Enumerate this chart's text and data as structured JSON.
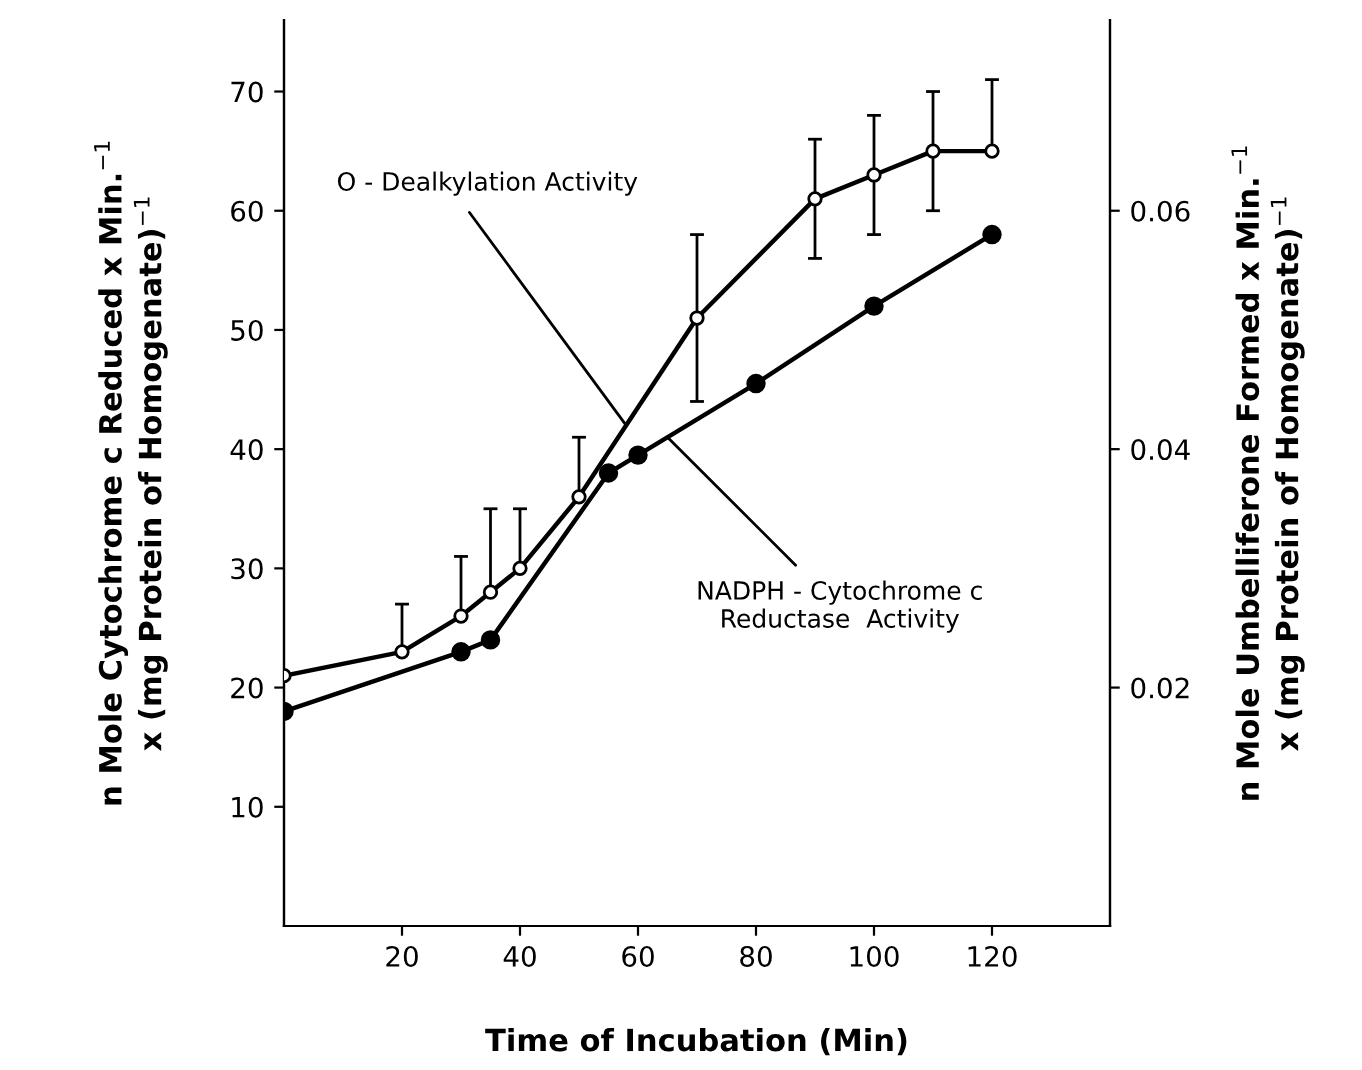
{
  "chart_data": {
    "type": "line",
    "xlabel": "Time of Incubation (Min)",
    "ylabel": "n Mole Cytochrome c Reduced x Min.$^{−1}$\nx (mg Protein of Homogenate)$^{−1}$",
    "y2label": "n Mole Umbelliferone Formed x Min.$^{−1}$\nx (mg Protein of Homogenate)$^{−1}$",
    "xlim": [
      0,
      140
    ],
    "xticks": [
      20,
      40,
      60,
      80,
      100,
      120
    ],
    "ylim": [
      0,
      76
    ],
    "yticks": [
      10,
      20,
      30,
      40,
      50,
      60,
      70
    ],
    "y2lim": [
      0,
      0.076
    ],
    "y2ticks": [
      0.02,
      0.04,
      0.06
    ],
    "grid": false,
    "marker": "circle",
    "line_style": "solid",
    "series": [
      {
        "color": "#000000",
        "axis": "y2",
        "x": [
          0,
          20,
          30,
          35,
          40,
          50,
          70,
          90,
          100,
          110,
          120
        ],
        "values": [
          0.021,
          0.023,
          0.026,
          0.028,
          0.03,
          0.036,
          0.051,
          0.061,
          0.063,
          0.065,
          0.065
        ],
        "errors": [
          null,
          [
            0.023,
            0.027
          ],
          [
            0.026,
            0.031
          ],
          [
            0.028,
            0.035
          ],
          [
            0.03,
            0.035
          ],
          [
            0.036,
            0.041
          ],
          [
            0.044,
            0.058
          ],
          [
            0.056,
            0.066
          ],
          [
            0.058,
            0.068
          ],
          [
            0.06,
            0.07
          ],
          [
            0.065,
            0.071
          ]
        ]
      },
      {
        "color": "#000000",
        "axis": "y",
        "x": [
          0,
          30,
          35,
          55,
          60,
          80,
          100,
          120
        ],
        "values": [
          18,
          23,
          24,
          38,
          39.5,
          45.5,
          52,
          58
        ]
      }
    ],
    "annotations": [
      {
        "text": "O - Dealkylation Activity",
        "x": 58,
        "y": 42
      },
      {
        "text": "NADPH - Cytochrome c\nReductase  Activity",
        "x": 65,
        "y": 41
      }
    ]
  }
}
